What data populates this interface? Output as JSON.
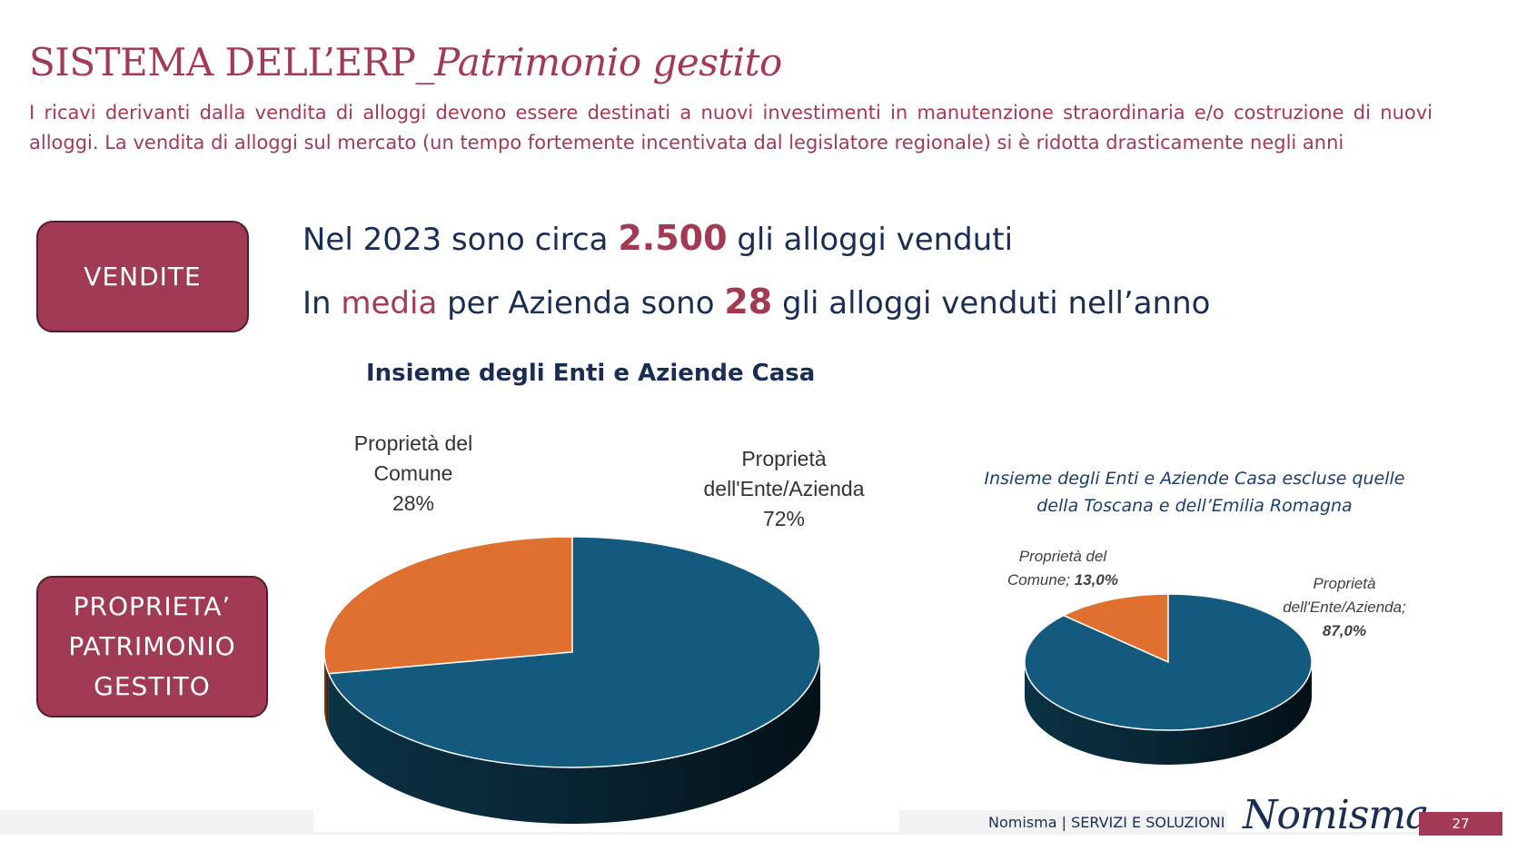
{
  "header": {
    "title_main": "SISTEMA DELL’ERP_",
    "title_italic": "Patrimonio gestito",
    "intro": "I ricavi derivanti dalla vendita di alloggi devono essere destinati a nuovi investimenti in manutenzione straordinaria e/o costruzione di nuovi alloggi. La vendita di alloggi sul mercato (un tempo fortemente incentivata dal legislatore regionale) si è ridotta drasticamente negli anni"
  },
  "badges": {
    "vendite": "VENDITE",
    "proprieta_lines": [
      "PROPRIETA’",
      "PATRIMONIO",
      "GESTITO"
    ]
  },
  "stats": {
    "line1_pre": "Nel 2023 sono circa ",
    "line1_value": "2.500",
    "line1_post": " gli alloggi venduti",
    "line2_pre": "In ",
    "line2_accent": "media",
    "line2_mid": " per Azienda sono ",
    "line2_value": "28",
    "line2_post": " gli alloggi venduti nell’anno"
  },
  "chart_data": [
    {
      "type": "pie",
      "title": "Insieme degli Enti e Aziende Casa",
      "labels": [
        "Proprietà del Comune",
        "Proprietà dell'Ente/Azienda"
      ],
      "values": [
        28,
        72
      ],
      "value_labels": [
        "28%",
        "72%"
      ],
      "colors": [
        "#e07030",
        "#145a7e"
      ],
      "label_lines": [
        [
          "Proprietà del",
          "Comune"
        ],
        [
          "Proprietà",
          "dell'Ente/Azienda"
        ]
      ]
    },
    {
      "type": "pie",
      "title": "Insieme degli Enti e Aziende Casa escluse quelle della Toscana e dell’Emilia Romagna",
      "title_lines": [
        "Insieme degli Enti e Aziende Casa escluse quelle",
        "della Toscana e dell’Emilia Romagna"
      ],
      "labels": [
        "Proprietà del Comune",
        "Proprietà dell'Ente/Azienda"
      ],
      "values": [
        13.0,
        87.0
      ],
      "value_labels": [
        "13,0%",
        "87,0%"
      ],
      "colors": [
        "#e07030",
        "#145a7e"
      ],
      "label_lines": [
        [
          "Proprietà del",
          "Comune;"
        ],
        [
          "Proprietà",
          "dell'Ente/Azienda;"
        ]
      ]
    }
  ],
  "footer": {
    "text": "Nomisma | SERVIZI E SOLUZIONI",
    "logo": "Nomisma",
    "page": "27"
  }
}
